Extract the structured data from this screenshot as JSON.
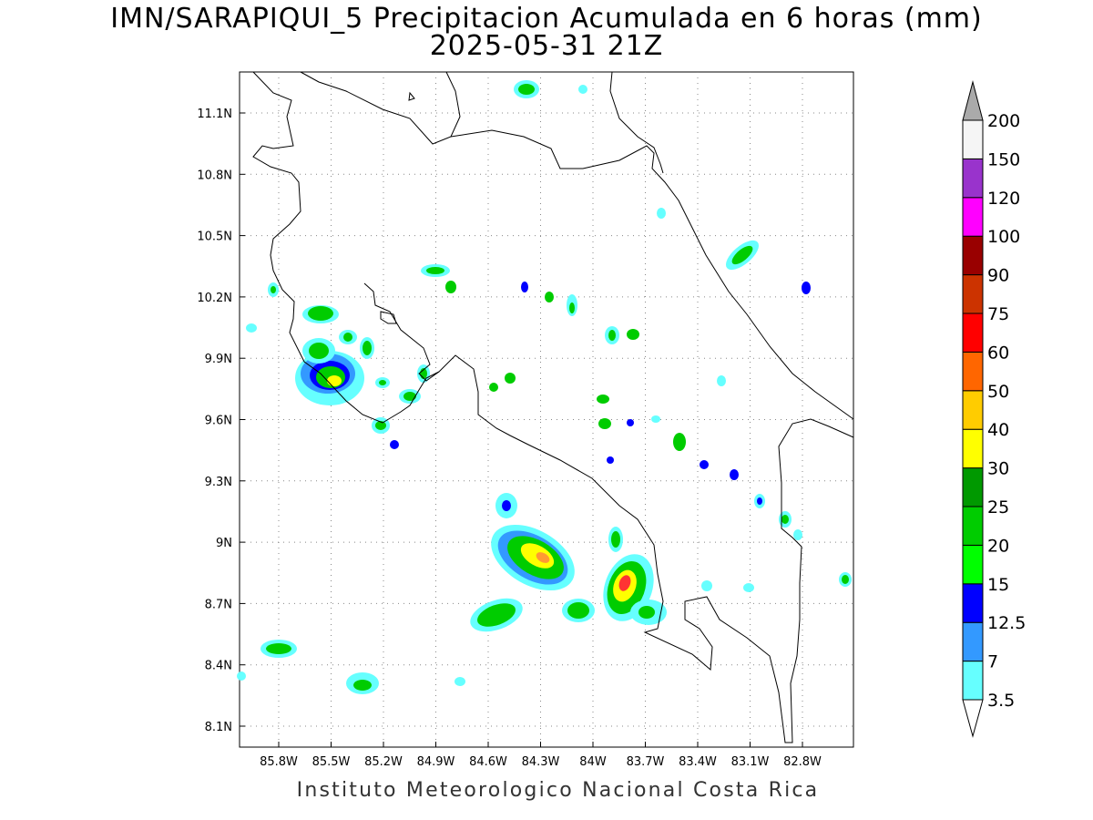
{
  "title": {
    "line1": "IMN/SARAPIQUI_5 Precipitacion Acumulada en 6 horas (mm)",
    "line2": "2025-05-31 21Z"
  },
  "footer": "Instituto Meteorologico Nacional Costa Rica",
  "map": {
    "lat_ticks": [
      "11.1N",
      "10.8N",
      "10.5N",
      "10.2N",
      "9.9N",
      "9.6N",
      "9.3N",
      "9N",
      "8.7N",
      "8.4N",
      "8.1N"
    ],
    "lon_ticks": [
      "85.8W",
      "85.5W",
      "85.2W",
      "84.9W",
      "84.6W",
      "84.3W",
      "84W",
      "83.7W",
      "83.4W",
      "83.1W",
      "82.8W"
    ]
  },
  "colorbar": {
    "levels": [
      "3.5",
      "7",
      "12.5",
      "15",
      "20",
      "25",
      "30",
      "40",
      "50",
      "60",
      "75",
      "90",
      "100",
      "120",
      "150",
      "200"
    ],
    "colors": [
      "#ffffff",
      "#66ffff",
      "#3399ff",
      "#0000ff",
      "#00ff00",
      "#00cc00",
      "#009900",
      "#ffff00",
      "#ffcc00",
      "#ff6600",
      "#ff0000",
      "#cc3300",
      "#990000",
      "#ff00ff",
      "#9933cc",
      "#f5f5f5",
      "#aaaaaa"
    ]
  },
  "precip_colors": {
    "c35": "#66ffff",
    "c7": "#3399ff",
    "c125": "#0000ff",
    "c20": "#00cc00",
    "c30": "#ffff00",
    "c50": "#ff9933",
    "c60": "#ff3333"
  }
}
